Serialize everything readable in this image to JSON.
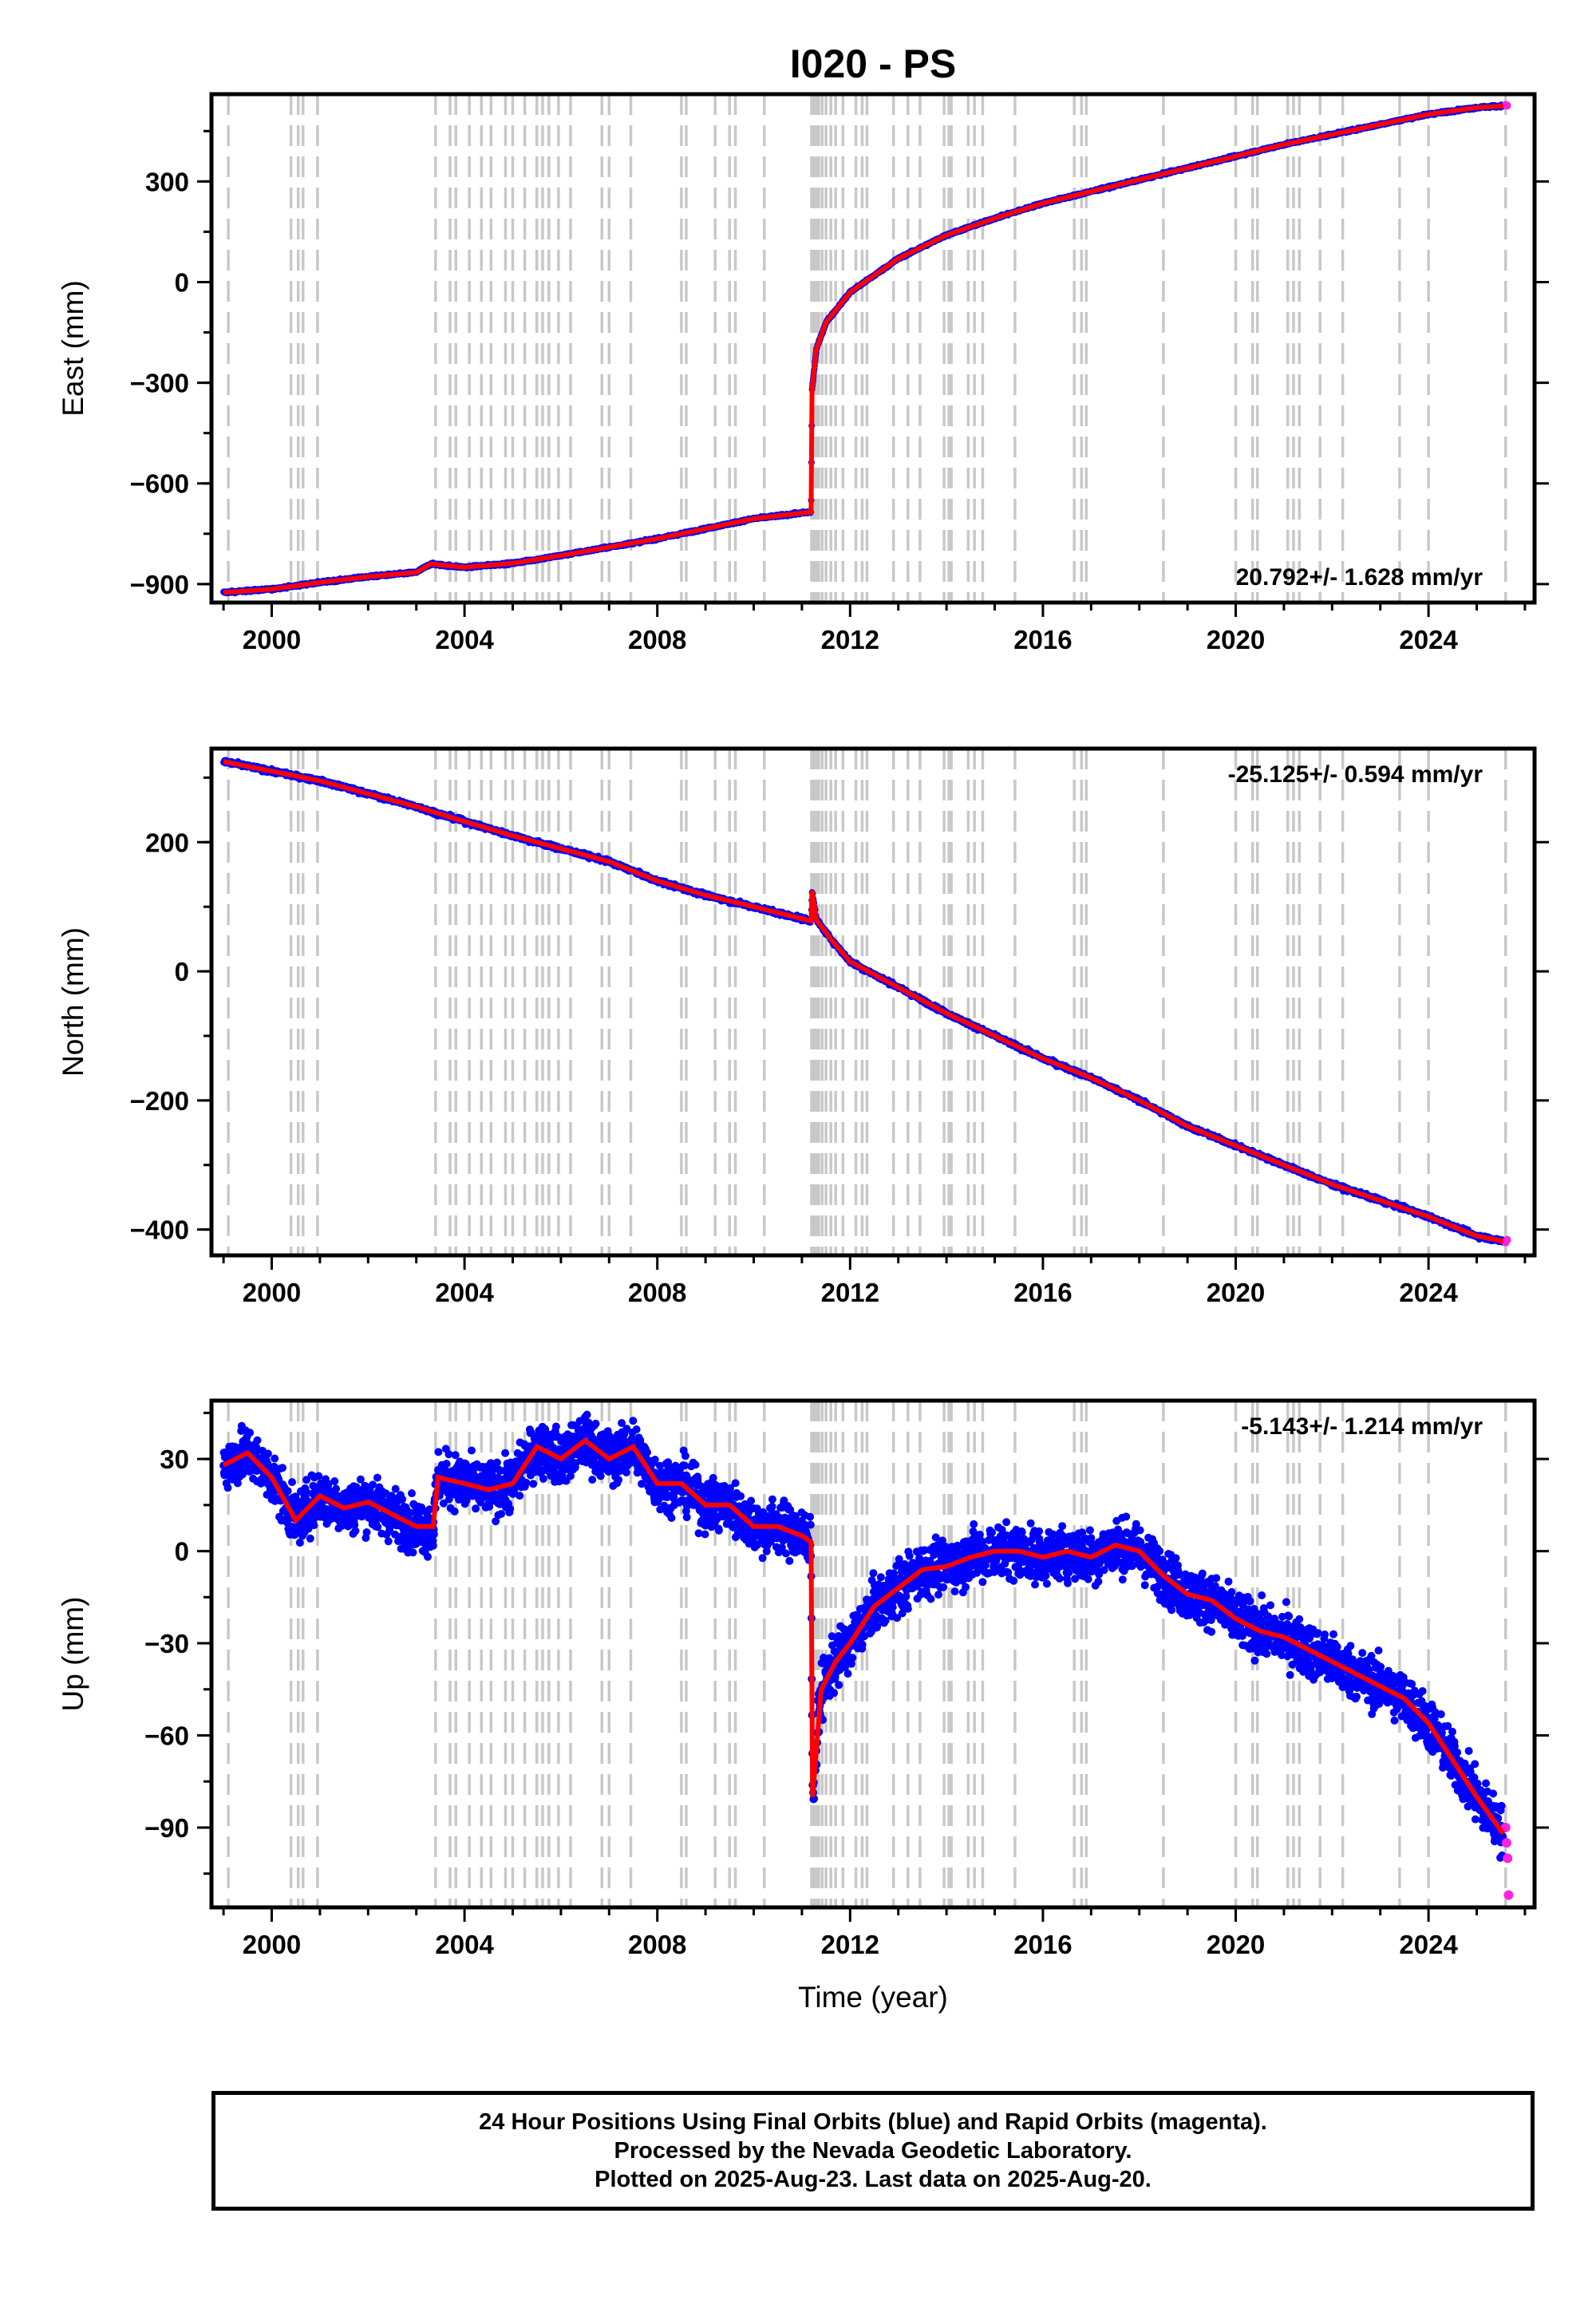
{
  "title": "I020 - PS",
  "colors": {
    "final_orbits": "#0000ff",
    "rapid_orbits": "#ff22dd",
    "model_line": "#ff0000",
    "step_lines": "#c8c8c8",
    "frame": "#000000"
  },
  "x_axis": {
    "label": "Time (year)",
    "range": [
      1998.75,
      2026.2
    ],
    "ticks": [
      2000,
      2004,
      2008,
      2012,
      2016,
      2020,
      2024
    ],
    "tick_labels": [
      "2000",
      "2004",
      "2008",
      "2012",
      "2016",
      "2020",
      "2024"
    ]
  },
  "step_epochs": [
    1999.1,
    2000.4,
    2000.55,
    2000.65,
    2000.95,
    2003.4,
    2003.7,
    2003.82,
    2004.1,
    2004.35,
    2004.55,
    2004.85,
    2005.0,
    2005.25,
    2005.5,
    2005.62,
    2005.75,
    2005.95,
    2006.2,
    2006.85,
    2007.0,
    2007.45,
    2008.5,
    2008.6,
    2009.2,
    2009.5,
    2009.62,
    2010.22,
    2011.2,
    2011.25,
    2011.3,
    2011.35,
    2011.42,
    2011.5,
    2011.6,
    2011.7,
    2011.85,
    2012.12,
    2012.25,
    2012.35,
    2012.9,
    2013.2,
    2013.45,
    2013.95,
    2014.05,
    2014.1,
    2014.45,
    2014.58,
    2014.75,
    2015.42,
    2016.65,
    2016.8,
    2016.9,
    2018.5,
    2020.0,
    2020.35,
    2020.45,
    2021.08,
    2021.2,
    2021.32,
    2021.75,
    2022.22,
    2023.4,
    2024.0,
    2025.6
  ],
  "chart_data": [
    {
      "type": "scatter",
      "panel": "east",
      "ylabel": "East (mm)",
      "ylim": [
        -955,
        560
      ],
      "yticks": [
        -900,
        -600,
        -300,
        0,
        300
      ],
      "ytick_labels": [
        "−900",
        "−600",
        "−300",
        "0",
        "300"
      ],
      "rate_text": "20.792+/- 1.628 mm/yr",
      "rate_position": "bottom-right",
      "series": [
        {
          "name": "Final Orbits (blue)",
          "x": [
            1999.0,
            2000.0,
            2001.0,
            2002.0,
            2003.0,
            2003.3,
            2004.0,
            2005.0,
            2006.0,
            2007.0,
            2008.0,
            2009.0,
            2010.0,
            2011.19,
            2011.21,
            2011.3,
            2011.5,
            2012.0,
            2013.0,
            2014.0,
            2015.0,
            2016.0,
            2017.0,
            2018.0,
            2019.0,
            2020.0,
            2021.0,
            2022.0,
            2023.0,
            2024.0,
            2025.0,
            2025.55
          ],
          "y": [
            -925,
            -915,
            -895,
            -878,
            -865,
            -840,
            -850,
            -838,
            -815,
            -790,
            -765,
            -735,
            -705,
            -685,
            -320,
            -200,
            -120,
            -30,
            70,
            140,
            190,
            235,
            270,
            305,
            340,
            375,
            410,
            440,
            470,
            500,
            520,
            525
          ]
        },
        {
          "name": "Rapid Orbits (magenta)",
          "x": [
            2025.6,
            2025.63
          ],
          "y": [
            528,
            526
          ]
        }
      ]
    },
    {
      "type": "scatter",
      "panel": "north",
      "ylabel": "North (mm)",
      "ylim": [
        -440,
        345
      ],
      "yticks": [
        -400,
        -200,
        0,
        200
      ],
      "ytick_labels": [
        "−400",
        "−200",
        "0",
        "200"
      ],
      "rate_text": "-25.125+/- 0.594 mm/yr",
      "rate_position": "top-right",
      "series": [
        {
          "name": "Final Orbits (blue)",
          "x": [
            1999.0,
            2000.0,
            2001.0,
            2002.0,
            2003.0,
            2004.0,
            2005.0,
            2006.0,
            2007.0,
            2008.0,
            2009.0,
            2010.0,
            2011.19,
            2011.21,
            2011.3,
            2011.6,
            2012.0,
            2013.0,
            2014.0,
            2015.0,
            2016.0,
            2017.0,
            2018.0,
            2019.0,
            2020.0,
            2021.0,
            2022.0,
            2023.0,
            2024.0,
            2025.0,
            2025.55
          ],
          "y": [
            325,
            310,
            295,
            275,
            255,
            232,
            210,
            190,
            170,
            140,
            118,
            100,
            78,
            125,
            80,
            50,
            15,
            -25,
            -65,
            -100,
            -135,
            -165,
            -200,
            -240,
            -270,
            -300,
            -330,
            -355,
            -380,
            -410,
            -418
          ]
        },
        {
          "name": "Rapid Orbits (magenta)",
          "x": [
            2025.6,
            2025.63
          ],
          "y": [
            -420,
            -416
          ]
        }
      ]
    },
    {
      "type": "scatter",
      "panel": "up",
      "ylabel": "Up (mm)",
      "ylim": [
        -116,
        49
      ],
      "yticks": [
        -90,
        -60,
        -30,
        0,
        30
      ],
      "ytick_labels": [
        "−90",
        "−60",
        "−30",
        "0",
        "30"
      ],
      "rate_text": "-5.143+/- 1.214 mm/yr",
      "rate_position": "top-right",
      "series": [
        {
          "name": "Final Orbits (blue)",
          "x": [
            1999.0,
            1999.5,
            2000.0,
            2000.5,
            2001.0,
            2001.5,
            2002.0,
            2002.5,
            2003.0,
            2003.35,
            2003.45,
            2004.0,
            2004.5,
            2005.0,
            2005.5,
            2006.0,
            2006.5,
            2007.0,
            2007.5,
            2008.0,
            2008.5,
            2009.0,
            2009.5,
            2010.0,
            2010.5,
            2011.0,
            2011.19,
            2011.22,
            2011.4,
            2011.7,
            2012.0,
            2012.5,
            2013.0,
            2013.5,
            2014.0,
            2014.5,
            2015.0,
            2015.5,
            2016.0,
            2016.5,
            2017.0,
            2017.5,
            2018.0,
            2018.5,
            2019.0,
            2019.5,
            2020.0,
            2020.5,
            2021.0,
            2021.5,
            2022.0,
            2022.5,
            2023.0,
            2023.5,
            2024.0,
            2024.5,
            2025.0,
            2025.55
          ],
          "y": [
            28,
            32,
            24,
            10,
            18,
            14,
            16,
            12,
            8,
            8,
            24,
            22,
            20,
            22,
            34,
            30,
            36,
            30,
            34,
            22,
            22,
            15,
            15,
            8,
            8,
            5,
            3,
            -80,
            -45,
            -36,
            -30,
            -18,
            -12,
            -6,
            -5,
            -2,
            0,
            0,
            -2,
            0,
            -2,
            2,
            0,
            -8,
            -14,
            -16,
            -22,
            -26,
            -28,
            -32,
            -36,
            -40,
            -44,
            -48,
            -56,
            -68,
            -80,
            -92
          ]
        },
        {
          "name": "Rapid Orbits (magenta)",
          "x": [
            2025.6,
            2025.62,
            2025.64,
            2025.66
          ],
          "y": [
            -90,
            -95,
            -100,
            -112
          ]
        }
      ]
    }
  ],
  "caption": {
    "line1": "24 Hour Positions Using Final Orbits (blue) and Rapid Orbits (magenta).",
    "line2": "Processed by the Nevada Geodetic Laboratory.",
    "line3": "Plotted on 2025-Aug-23. Last data on 2025-Aug-20."
  }
}
